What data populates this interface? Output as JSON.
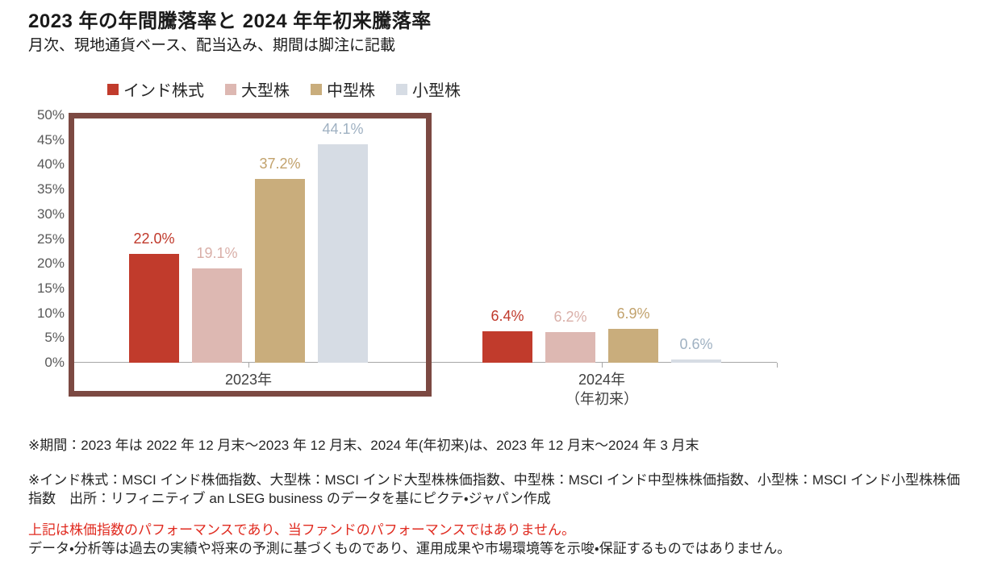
{
  "page": {
    "title": "2023 年の年間騰落率と 2024 年年初来騰落率",
    "subtitle": "月次、現地通貨ベース、配当込み、期間は脚注に記載"
  },
  "legend": {
    "items": [
      {
        "label": "インド株式",
        "color": "#c13b2c"
      },
      {
        "label": "大型株",
        "color": "#ddb8b2"
      },
      {
        "label": "中型株",
        "color": "#c9ad7c"
      },
      {
        "label": "小型株",
        "color": "#d6dce4"
      }
    ]
  },
  "chart_data": {
    "type": "bar",
    "categories": [
      "2023年",
      "2024年（年初来）"
    ],
    "category_label_lines": [
      [
        "2023年"
      ],
      [
        "2024年",
        "（年初来）"
      ]
    ],
    "series": [
      {
        "name": "インド株式",
        "color": "#c13b2c",
        "label_color": "#c0392b",
        "values": [
          22.0,
          6.4
        ]
      },
      {
        "name": "大型株",
        "color": "#ddb8b2",
        "label_color": "#d9afa8",
        "values": [
          19.1,
          6.2
        ]
      },
      {
        "name": "中型株",
        "color": "#c9ad7c",
        "label_color": "#c2a26c",
        "values": [
          37.2,
          6.9
        ]
      },
      {
        "name": "小型株",
        "color": "#d6dce4",
        "label_color": "#9fb1c2",
        "values": [
          44.1,
          0.6
        ]
      }
    ],
    "value_labels": [
      [
        "22.0%",
        "19.1%",
        "37.2%",
        "44.1%"
      ],
      [
        "6.4%",
        "6.2%",
        "6.9%",
        "0.6%"
      ]
    ],
    "y_ticks": [
      "50%",
      "45%",
      "40%",
      "35%",
      "30%",
      "25%",
      "20%",
      "15%",
      "10%",
      "5%",
      "0%"
    ],
    "ylim": [
      0,
      50
    ],
    "grid": false,
    "legend_position": "top",
    "axis_color": "#a6a6a6",
    "highlight": {
      "group_index": 0,
      "border_color": "#7c4942"
    }
  },
  "footnotes": {
    "period": "※期間：2023 年は 2022 年 12 月末～2023 年 12 月末、2024 年(年初来)は、2023 年 12 月末～2024 年 3 月末",
    "indices": "※インド株式：MSCI インド株価指数、大型株：MSCI インド大型株株価指数、中型株：MSCI インド中型株株価指数、小型株：MSCI インド小型株株価指数　出所：リフィニティブ an LSEG business のデータを基にピクテ・ジャパン作成",
    "warning": "上記は株価指数のパフォーマンスであり、当ファンドのパフォーマンスではありません。",
    "warning_color": "#e02b20",
    "disclaimer": "データ・分析等は過去の実績や将来の予測に基づくものであり、運用成果や市場環境等を示唆・保証するものではありません。"
  }
}
